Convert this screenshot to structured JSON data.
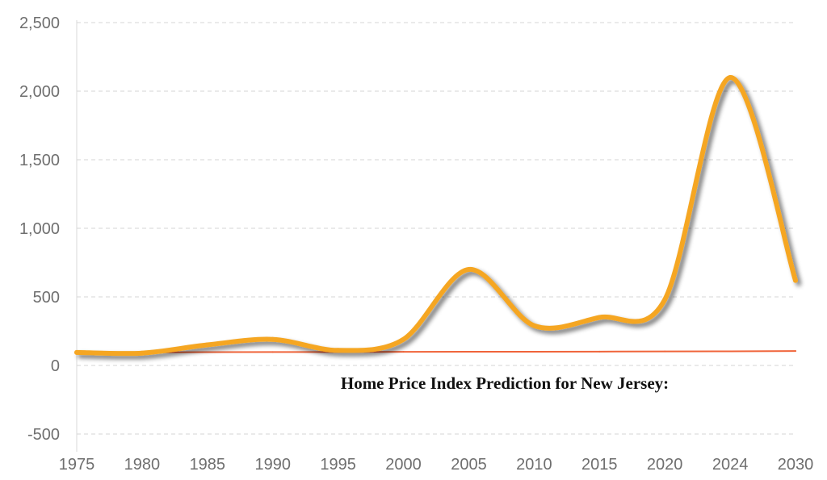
{
  "chart_data": {
    "type": "line",
    "title": "Home Price Index Prediction for New Jersey:",
    "categories": [
      "1975",
      "1980",
      "1985",
      "1990",
      "1995",
      "2000",
      "2005",
      "2010",
      "2015",
      "2020",
      "2024",
      "2030"
    ],
    "y_tick_labels": [
      "2,500",
      "2,000",
      "1,500",
      "1,000",
      "500",
      "0",
      "-500"
    ],
    "y_ticks": [
      2500,
      2000,
      1500,
      1000,
      500,
      0,
      -500
    ],
    "ylim": [
      -500,
      2500
    ],
    "grid": true,
    "series": [
      {
        "values": [
          95,
          90,
          150,
          190,
          110,
          190,
          700,
          290,
          350,
          480,
          2100,
          620
        ],
        "color": "#f5a623"
      },
      {
        "values": [
          95,
          95,
          97,
          98,
          98,
          99,
          100,
          100,
          101,
          102,
          103,
          105
        ],
        "color": "#f0643a"
      }
    ]
  }
}
